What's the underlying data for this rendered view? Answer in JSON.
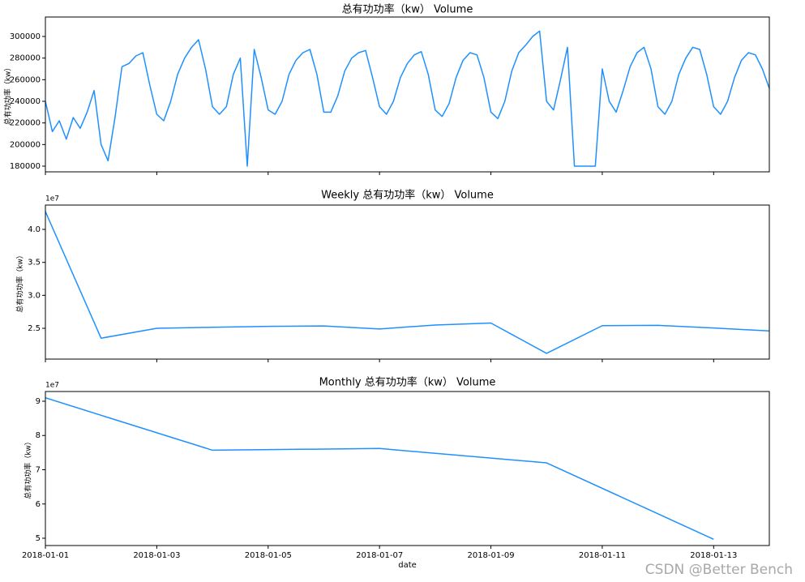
{
  "chart_data": [
    {
      "type": "line",
      "title": "总有功功率（kw） Volume",
      "y_label": "总有功功率（kw）",
      "color": "#1e90ff",
      "xlim": [
        "2018-01-01",
        "2018-01-14"
      ],
      "xticks": [
        "2018-01-01",
        "2018-01-03",
        "2018-01-05",
        "2018-01-07",
        "2018-01-09",
        "2018-01-11",
        "2018-01-13"
      ],
      "xtick_labels": false,
      "ylim": [
        174750,
        318000
      ],
      "yticks": [
        180000,
        200000,
        220000,
        240000,
        260000,
        280000,
        300000
      ],
      "values": [
        240000,
        212000,
        222000,
        205000,
        225000,
        215000,
        230000,
        250000,
        200000,
        185000,
        225000,
        272000,
        275000,
        282000,
        285000,
        255000,
        228000,
        222000,
        240000,
        265000,
        280000,
        290000,
        297000,
        270000,
        235000,
        228000,
        235000,
        265000,
        280000,
        180000,
        288000,
        262000,
        232000,
        228000,
        240000,
        265000,
        278000,
        285000,
        288000,
        265000,
        230000,
        230000,
        245000,
        268000,
        280000,
        285000,
        287000,
        262000,
        235000,
        228000,
        240000,
        262000,
        275000,
        283000,
        286000,
        265000,
        232000,
        226000,
        238000,
        262000,
        278000,
        285000,
        283000,
        262000,
        230000,
        224000,
        240000,
        268000,
        285000,
        292000,
        300000,
        305000,
        240000,
        232000,
        260000,
        290000,
        180000,
        180000,
        180000,
        180000,
        270000,
        240000,
        230000,
        250000,
        272000,
        285000,
        290000,
        270000,
        235000,
        228000,
        240000,
        265000,
        280000,
        290000,
        288000,
        265000,
        235000,
        228000,
        240000,
        262000,
        278000,
        285000,
        283000,
        270000,
        252000
      ]
    },
    {
      "type": "line",
      "title": "Weekly 总有功功率（kw） Volume",
      "y_label": "总有功功率（kw）",
      "offset_label": "1e7",
      "color": "#1e90ff",
      "xlim": [
        "2018-01-01",
        "2018-01-14"
      ],
      "xticks": [
        "2018-01-01",
        "2018-01-03",
        "2018-01-05",
        "2018-01-07",
        "2018-01-09",
        "2018-01-11",
        "2018-01-13"
      ],
      "xtick_labels": false,
      "ylim": [
        20330000,
        43690000
      ],
      "yticks": [
        {
          "value": 25000000,
          "label": "2.5"
        },
        {
          "value": 30000000,
          "label": "3.0"
        },
        {
          "value": 35000000,
          "label": "3.5"
        },
        {
          "value": 40000000,
          "label": "4.0"
        }
      ],
      "x": [
        "2018-01-01",
        "2018-01-02",
        "2018-01-03",
        "2018-01-04",
        "2018-01-05",
        "2018-01-06",
        "2018-01-07",
        "2018-01-08",
        "2018-01-09",
        "2018-01-10",
        "2018-01-11",
        "2018-01-12",
        "2018-01-13",
        "2018-01-14"
      ],
      "values": [
        42700000,
        23500000,
        25000000,
        25150000,
        25300000,
        25350000,
        24900000,
        25500000,
        25800000,
        21200000,
        25400000,
        25450000,
        25050000,
        24600000
      ]
    },
    {
      "type": "line",
      "title": "Monthly 总有功功率（kw） Volume",
      "y_label": "总有功功率（kw）",
      "x_label": "date",
      "offset_label": "1e7",
      "color": "#1e90ff",
      "xlim": [
        "2018-01-01",
        "2018-01-14"
      ],
      "xticks": [
        "2018-01-01",
        "2018-01-03",
        "2018-01-05",
        "2018-01-07",
        "2018-01-09",
        "2018-01-11",
        "2018-01-13"
      ],
      "xtick_labels": true,
      "ylim": [
        47870000,
        92840000
      ],
      "yticks": [
        {
          "value": 50000000,
          "label": "5"
        },
        {
          "value": 60000000,
          "label": "6"
        },
        {
          "value": 70000000,
          "label": "7"
        },
        {
          "value": 80000000,
          "label": "8"
        },
        {
          "value": 90000000,
          "label": "9"
        }
      ],
      "x": [
        "2018-01-01",
        "2018-01-04",
        "2018-01-07",
        "2018-01-10",
        "2018-01-13"
      ],
      "values": [
        91000000,
        75700000,
        76200000,
        72000000,
        49700000
      ]
    }
  ],
  "watermark": "CSDN @Better Bench"
}
